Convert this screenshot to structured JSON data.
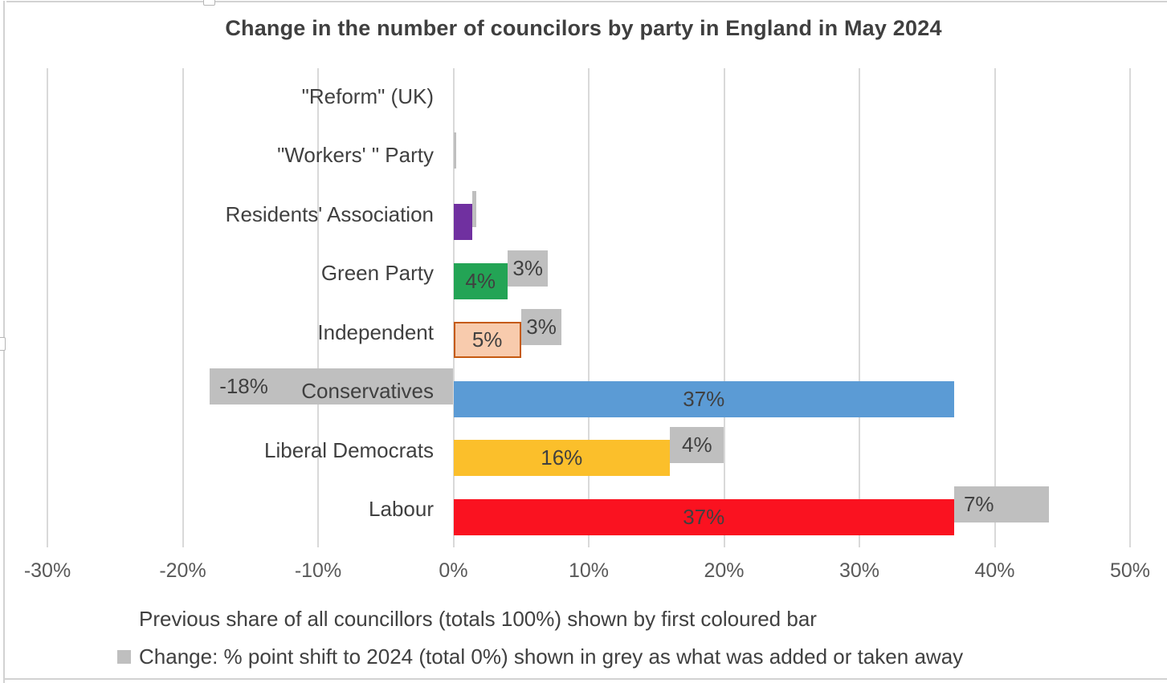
{
  "title": "Change in the number of councilors by party in England in May 2024",
  "chart_data": {
    "type": "bar",
    "orientation": "horizontal",
    "title": "Change in the number of councilors by party in England in May 2024",
    "categories": [
      "\"Reform\" (UK)",
      "\"Workers' \" Party",
      "Residents' Association",
      "Green Party",
      "Independent",
      "Conservatives",
      "Liberal Democrats",
      "Labour"
    ],
    "series": [
      {
        "name": "Previous share of all councillors (totals 100%) shown by first coloured bar",
        "values": [
          0,
          0,
          1.4,
          4,
          5,
          37,
          16,
          37
        ],
        "labels": [
          "",
          "",
          "",
          "4%",
          "5%",
          "37%",
          "16%",
          "37%"
        ],
        "colors": [
          "#bfbfbf",
          "#bfbfbf",
          "#7030a0",
          "#23a455",
          "#f8cbad",
          "#5b9bd5",
          "#fbbf2b",
          "#fa1220"
        ],
        "border_colors": [
          "",
          "",
          "",
          "",
          "#c55a11",
          "",
          "",
          ""
        ]
      },
      {
        "name": "Change: % point shift to 2024 (total 0%) shown in grey as what was added or taken away",
        "values": [
          0,
          0.2,
          0.3,
          3,
          3,
          -18,
          4,
          7
        ],
        "labels": [
          "",
          "",
          "",
          "3%",
          "3%",
          "-18%",
          "4%",
          "7%"
        ],
        "label_align": [
          "center",
          "center",
          "center",
          "center",
          "center",
          "left",
          "center",
          "left"
        ],
        "color": "#bfbfbf"
      }
    ],
    "xlim": [
      -30,
      50
    ],
    "x_ticks": [
      -30,
      -20,
      -10,
      0,
      10,
      20,
      30,
      40,
      50
    ],
    "x_tick_labels": [
      "-30%",
      "-20%",
      "-10%",
      "0%",
      "10%",
      "20%",
      "30%",
      "40%",
      "50%"
    ],
    "grid": "vertical",
    "legend_position": "bottom"
  },
  "captions": {
    "line1": "Previous share of all councillors (totals 100%) shown by first coloured bar",
    "line2": "Change: % point shift to 2024 (total 0%) shown in grey as what was added or taken away"
  },
  "colors": {
    "grey_series": "#bfbfbf",
    "gridline": "#d9d9d9",
    "text": "#404040",
    "tick_text": "#595959",
    "frame": "#d2d2d2"
  }
}
